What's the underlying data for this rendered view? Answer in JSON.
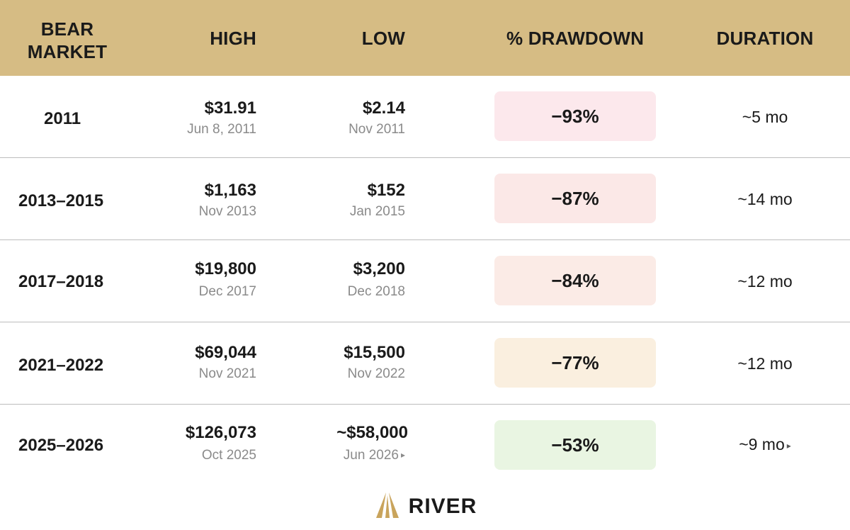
{
  "header": {
    "bear_market": "BEAR\nMARKET",
    "bear_line1": "BEAR",
    "bear_line2": "MARKET",
    "high": "HIGH",
    "low": "LOW",
    "drawdown": "% DRAWDOWN",
    "duration": "DURATION"
  },
  "rows": [
    {
      "bear": "2011",
      "high_price": "$31.91",
      "high_date": "Jun 8, 2011",
      "low_price": "$2.14",
      "low_date": "Nov 2011",
      "drawdown": "−93%",
      "duration": "~5 mo",
      "pill_color": "#fce8ec"
    },
    {
      "bear": "2013–2015",
      "high_price": "$1,163",
      "high_date": "Nov 2013",
      "low_price": "$152",
      "low_date": "Jan 2015",
      "drawdown": "−87%",
      "duration": "~14 mo",
      "pill_color": "#fbe8e7"
    },
    {
      "bear": "2017–2018",
      "high_price": "$19,800",
      "high_date": "Dec 2017",
      "low_price": "$3,200",
      "low_date": "Dec 2018",
      "drawdown": "−84%",
      "duration": "~12 mo",
      "pill_color": "#fbebe6"
    },
    {
      "bear": "2021–2022",
      "high_price": "$69,044",
      "high_date": "Nov 2021",
      "low_price": "$15,500",
      "low_date": "Nov 2022",
      "drawdown": "−77%",
      "duration": "~12 mo",
      "pill_color": "#faefdf"
    },
    {
      "bear": "2025–2026",
      "high_price": "$126,073",
      "high_date": "Oct 2025",
      "low_price": "~$58,000",
      "low_date": "Jun 2026",
      "drawdown": "−53%",
      "duration": "~9 mo",
      "pill_color": "#e9f5e2"
    }
  ],
  "footer": {
    "brand": "RIVER",
    "logo_icon": "river-logo-icon",
    "logo_color": "#c9a45c"
  }
}
